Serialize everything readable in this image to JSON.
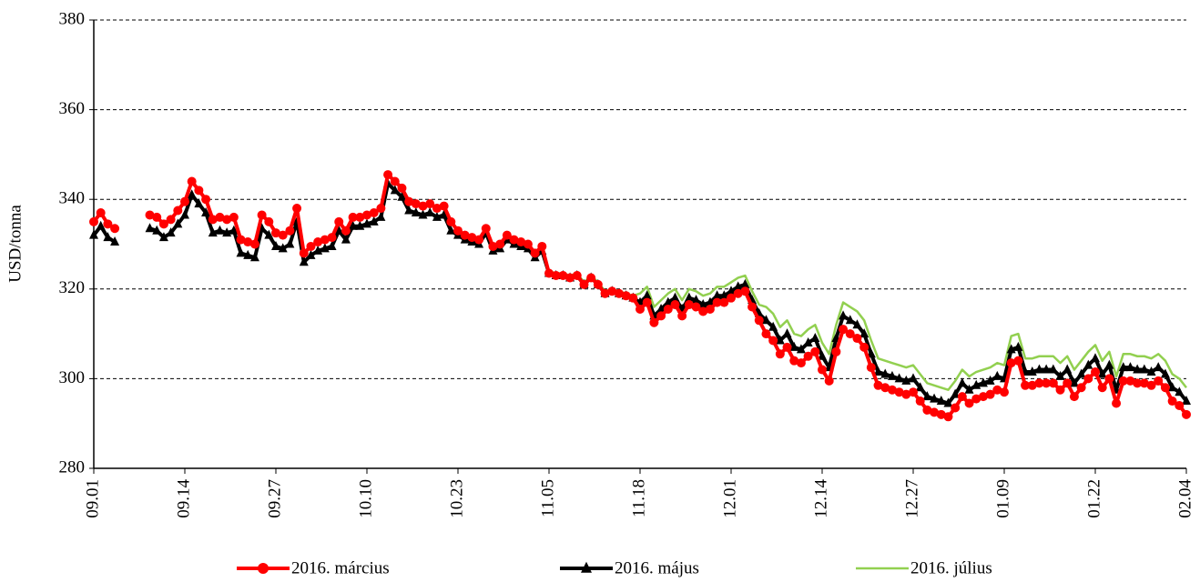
{
  "chart_data": {
    "type": "line",
    "y_label": "USD/tonna",
    "categories": [
      "09.01",
      null,
      null,
      null,
      null,
      null,
      null,
      null,
      null,
      null,
      null,
      null,
      null,
      "09.14",
      null,
      null,
      null,
      null,
      null,
      null,
      null,
      null,
      null,
      null,
      null,
      null,
      "09.27",
      null,
      null,
      null,
      null,
      null,
      null,
      null,
      null,
      null,
      null,
      null,
      null,
      "10.10",
      null,
      null,
      null,
      null,
      null,
      null,
      null,
      null,
      null,
      null,
      null,
      null,
      "10.23",
      null,
      null,
      null,
      null,
      null,
      null,
      null,
      null,
      null,
      null,
      null,
      null,
      "11.05",
      null,
      null,
      null,
      null,
      null,
      null,
      null,
      null,
      null,
      null,
      null,
      null,
      "11.18",
      null,
      null,
      null,
      null,
      null,
      null,
      null,
      null,
      null,
      null,
      null,
      null,
      "12.01",
      null,
      null,
      null,
      null,
      null,
      null,
      null,
      null,
      null,
      null,
      null,
      null,
      "12.14",
      null,
      null,
      null,
      null,
      null,
      null,
      null,
      null,
      null,
      null,
      null,
      null,
      "12.27",
      null,
      null,
      null,
      null,
      null,
      null,
      null,
      null,
      null,
      null,
      null,
      null,
      "01.09",
      null,
      null,
      null,
      null,
      null,
      null,
      null,
      null,
      null,
      null,
      null,
      null,
      "01.22",
      null,
      null,
      null,
      null,
      null,
      null,
      null,
      null,
      null,
      null,
      null,
      null,
      "02.04"
    ],
    "series": [
      {
        "name": "2016. március",
        "color": "#ff0000",
        "marker": "circle",
        "values": [
          335,
          337,
          334.5,
          333.5,
          null,
          null,
          null,
          null,
          336.5,
          336,
          334.5,
          335.5,
          337.5,
          339.5,
          344,
          342,
          340,
          335.5,
          336,
          335.5,
          336,
          331,
          330.5,
          330,
          336.5,
          335,
          332.5,
          332,
          333,
          338,
          328,
          329.5,
          330.5,
          331,
          331.5,
          335,
          333,
          336,
          336,
          336.5,
          337,
          338,
          345.5,
          344,
          342.5,
          339.5,
          339,
          338.5,
          339,
          338,
          338.5,
          335,
          333,
          332,
          331.5,
          331,
          333.5,
          329.5,
          330,
          332,
          331,
          330.5,
          330,
          328,
          329.5,
          323.5,
          323,
          323,
          322.5,
          323,
          321,
          322.5,
          321,
          319,
          319.5,
          319,
          318.5,
          318,
          315.5,
          317,
          312.5,
          314,
          315.5,
          316.5,
          314,
          316.5,
          316,
          315,
          315.5,
          317,
          317,
          318,
          319,
          319.5,
          316,
          313,
          310,
          308.5,
          305.5,
          307,
          304,
          303.5,
          305,
          306,
          302,
          299.5,
          306,
          311,
          310,
          309,
          307,
          302.5,
          298.5,
          298,
          297.5,
          297,
          296.5,
          297,
          295,
          293,
          292.5,
          292,
          291.5,
          293.5,
          296,
          294.5,
          295.5,
          296,
          296.5,
          297.5,
          297,
          303.5,
          304,
          298.5,
          298.5,
          299,
          299,
          299,
          297.5,
          299,
          296,
          298,
          300,
          301.5,
          298,
          300,
          294.5,
          299.5,
          299.5,
          299,
          299,
          298.5,
          299.5,
          298,
          295,
          294,
          292
        ]
      },
      {
        "name": "2016. május",
        "color": "#000000",
        "marker": "triangle",
        "values": [
          332,
          334,
          331.5,
          330.5,
          null,
          null,
          null,
          null,
          333.5,
          333,
          331.5,
          332.5,
          334.5,
          336.5,
          341,
          339,
          337,
          332.5,
          333,
          332.5,
          333,
          328,
          327.5,
          327,
          333.5,
          332,
          329.5,
          329,
          330,
          335,
          326,
          327.5,
          328.5,
          329,
          329.5,
          333,
          331,
          334,
          334,
          334.5,
          335,
          336,
          343.5,
          342,
          340.5,
          337.5,
          337,
          336.5,
          337,
          336,
          336.5,
          333,
          332,
          331,
          330.5,
          330,
          332.5,
          328.5,
          329,
          331,
          330,
          329.5,
          329,
          327,
          328.5,
          323.5,
          323,
          323,
          322.5,
          323,
          321,
          322.5,
          321,
          319,
          319.5,
          319,
          318.5,
          318,
          317,
          318.5,
          314,
          315.5,
          317,
          318,
          315.5,
          318,
          317.5,
          316.5,
          317,
          318.5,
          318.5,
          319.5,
          320.5,
          321,
          317.5,
          314.5,
          313,
          311.5,
          308.5,
          310,
          307,
          306.5,
          308,
          309,
          305,
          302.5,
          309,
          314,
          313,
          312,
          310,
          305.5,
          301.5,
          301,
          300.5,
          300,
          299.5,
          300,
          298,
          296,
          295.5,
          295,
          294.5,
          296.5,
          299,
          297.5,
          298.5,
          299,
          299.5,
          300.5,
          300,
          306.5,
          307,
          301.5,
          301.5,
          302,
          302,
          302,
          300.5,
          302,
          299,
          301,
          303,
          304.5,
          301,
          303,
          297.5,
          302.5,
          302.5,
          302,
          302,
          301.5,
          302.5,
          301,
          298,
          297,
          295
        ]
      },
      {
        "name": "2016. július",
        "color": "#92d050",
        "marker": null,
        "values": [
          332,
          334,
          331.5,
          330.5,
          null,
          null,
          null,
          null,
          333.5,
          333,
          331.5,
          332.5,
          334.5,
          336.5,
          341,
          339,
          337,
          332.5,
          333,
          332.5,
          333,
          328,
          327.5,
          327,
          333.5,
          332,
          329.5,
          329,
          330,
          335,
          326,
          327.5,
          328.5,
          329,
          329.5,
          333,
          331,
          334,
          334,
          334.5,
          335,
          336,
          343.5,
          342,
          340.5,
          337.5,
          337,
          336.5,
          337,
          336,
          336.5,
          333,
          332,
          331,
          330.5,
          330,
          332.5,
          328.5,
          329,
          331,
          330,
          329.5,
          329,
          327,
          328.5,
          324,
          323.5,
          323.5,
          323,
          323.5,
          321.5,
          323,
          321.5,
          319.5,
          320,
          319.5,
          319,
          318.5,
          319,
          320.5,
          316,
          317.5,
          319,
          320,
          317.5,
          320,
          319.5,
          318.5,
          319,
          320.5,
          320.5,
          321.5,
          322.5,
          323,
          319.5,
          316.5,
          316,
          314.5,
          311.5,
          313,
          310,
          309.5,
          311,
          312,
          308,
          305.5,
          312,
          317,
          316,
          315,
          313,
          308.5,
          304.5,
          304,
          303.5,
          303,
          302.5,
          303,
          301,
          299,
          298.5,
          298,
          297.5,
          299.5,
          302,
          300.5,
          301.5,
          302,
          302.5,
          303.5,
          303,
          309.5,
          310,
          304.5,
          304.5,
          305,
          305,
          305,
          303.5,
          305,
          302,
          304,
          306,
          307.5,
          304,
          306,
          300.5,
          305.5,
          305.5,
          305,
          305,
          304.5,
          305.5,
          304,
          301,
          300,
          298
        ]
      }
    ],
    "ylim": [
      280,
      380
    ],
    "yticks": [
      280,
      300,
      320,
      340,
      360,
      380
    ],
    "grid": true,
    "legend": "bottom"
  }
}
